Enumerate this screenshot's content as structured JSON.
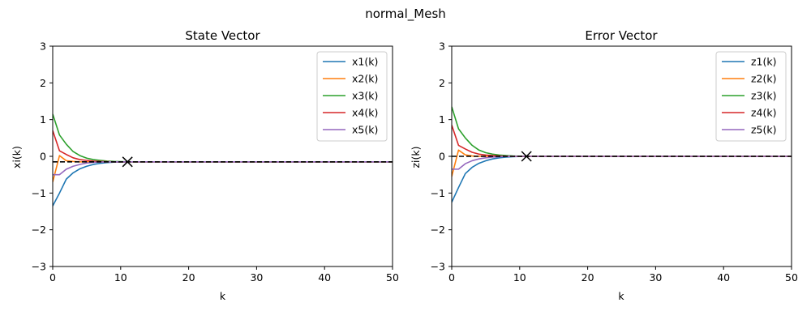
{
  "suptitle": "normal_Mesh",
  "chart_data": [
    {
      "type": "line",
      "title": "State Vector",
      "xlabel": "k",
      "ylabel": "xi(k)",
      "xlim": [
        0,
        50
      ],
      "ylim": [
        -3,
        3
      ],
      "xticks": [
        0,
        10,
        20,
        30,
        40,
        50
      ],
      "yticks": [
        -3,
        -2,
        -1,
        0,
        1,
        2,
        3
      ],
      "xtick_labels": [
        "0",
        "10",
        "20",
        "30",
        "40",
        "50"
      ],
      "ytick_labels": [
        "−3",
        "−2",
        "−1",
        "0",
        "1",
        "2",
        "3"
      ],
      "legend": "top-right",
      "grid": false,
      "reference_line": {
        "y": -0.15,
        "style": "dashed",
        "color": "#000000"
      },
      "marker": {
        "x": 11,
        "y": -0.15,
        "symbol": "x"
      },
      "x": [
        0,
        1,
        2,
        3,
        4,
        5,
        6,
        7,
        8,
        9,
        10,
        11,
        12,
        13,
        14,
        15,
        16,
        17,
        18,
        19,
        20,
        21,
        22,
        23,
        24,
        25,
        26,
        27,
        28,
        29,
        30,
        31,
        32,
        33,
        34,
        35,
        36,
        37,
        38,
        39,
        40,
        41,
        42,
        43,
        44,
        45,
        46,
        47,
        48,
        49,
        50
      ],
      "series": [
        {
          "name": "x1(k)",
          "color": "#1f77b4",
          "values": [
            -1.35,
            -1.0,
            -0.62,
            -0.45,
            -0.34,
            -0.27,
            -0.22,
            -0.19,
            -0.17,
            -0.16,
            -0.155,
            -0.15,
            -0.15,
            -0.15,
            -0.15,
            -0.15,
            -0.15,
            -0.15,
            -0.15,
            -0.15,
            -0.15,
            -0.15,
            -0.15,
            -0.15,
            -0.15,
            -0.15,
            -0.15,
            -0.15,
            -0.15,
            -0.15,
            -0.15,
            -0.15,
            -0.15,
            -0.15,
            -0.15,
            -0.15,
            -0.15,
            -0.15,
            -0.15,
            -0.15,
            -0.15,
            -0.15,
            -0.15,
            -0.15,
            -0.15,
            -0.15,
            -0.15,
            -0.15,
            -0.15,
            -0.15,
            -0.15
          ]
        },
        {
          "name": "x2(k)",
          "color": "#ff7f0e",
          "values": [
            -0.7,
            0.02,
            -0.12,
            -0.14,
            -0.15,
            -0.15,
            -0.15,
            -0.15,
            -0.15,
            -0.15,
            -0.15,
            -0.15,
            -0.15,
            -0.15,
            -0.15,
            -0.15,
            -0.15,
            -0.15,
            -0.15,
            -0.15,
            -0.15,
            -0.15,
            -0.15,
            -0.15,
            -0.15,
            -0.15,
            -0.15,
            -0.15,
            -0.15,
            -0.15,
            -0.15,
            -0.15,
            -0.15,
            -0.15,
            -0.15,
            -0.15,
            -0.15,
            -0.15,
            -0.15,
            -0.15,
            -0.15,
            -0.15,
            -0.15,
            -0.15,
            -0.15,
            -0.15,
            -0.15,
            -0.15,
            -0.15,
            -0.15,
            -0.15
          ]
        },
        {
          "name": "x3(k)",
          "color": "#2ca02c",
          "values": [
            1.15,
            0.58,
            0.33,
            0.13,
            0.02,
            -0.05,
            -0.09,
            -0.11,
            -0.13,
            -0.14,
            -0.145,
            -0.15,
            -0.15,
            -0.15,
            -0.15,
            -0.15,
            -0.15,
            -0.15,
            -0.15,
            -0.15,
            -0.15,
            -0.15,
            -0.15,
            -0.15,
            -0.15,
            -0.15,
            -0.15,
            -0.15,
            -0.15,
            -0.15,
            -0.15,
            -0.15,
            -0.15,
            -0.15,
            -0.15,
            -0.15,
            -0.15,
            -0.15,
            -0.15,
            -0.15,
            -0.15,
            -0.15,
            -0.15,
            -0.15,
            -0.15,
            -0.15,
            -0.15,
            -0.15,
            -0.15,
            -0.15,
            -0.15
          ]
        },
        {
          "name": "x4(k)",
          "color": "#d62728",
          "values": [
            0.7,
            0.15,
            0.05,
            -0.04,
            -0.09,
            -0.11,
            -0.13,
            -0.14,
            -0.145,
            -0.15,
            -0.15,
            -0.15,
            -0.15,
            -0.15,
            -0.15,
            -0.15,
            -0.15,
            -0.15,
            -0.15,
            -0.15,
            -0.15,
            -0.15,
            -0.15,
            -0.15,
            -0.15,
            -0.15,
            -0.15,
            -0.15,
            -0.15,
            -0.15,
            -0.15,
            -0.15,
            -0.15,
            -0.15,
            -0.15,
            -0.15,
            -0.15,
            -0.15,
            -0.15,
            -0.15,
            -0.15,
            -0.15,
            -0.15,
            -0.15,
            -0.15,
            -0.15,
            -0.15,
            -0.15,
            -0.15,
            -0.15,
            -0.15
          ]
        },
        {
          "name": "x5(k)",
          "color": "#9467bd",
          "values": [
            -0.5,
            -0.5,
            -0.35,
            -0.27,
            -0.22,
            -0.18,
            -0.165,
            -0.155,
            -0.15,
            -0.15,
            -0.15,
            -0.15,
            -0.15,
            -0.15,
            -0.15,
            -0.15,
            -0.15,
            -0.15,
            -0.15,
            -0.15,
            -0.15,
            -0.15,
            -0.15,
            -0.15,
            -0.15,
            -0.15,
            -0.15,
            -0.15,
            -0.15,
            -0.15,
            -0.15,
            -0.15,
            -0.15,
            -0.15,
            -0.15,
            -0.15,
            -0.15,
            -0.15,
            -0.15,
            -0.15,
            -0.15,
            -0.15,
            -0.15,
            -0.15,
            -0.15,
            -0.15,
            -0.15,
            -0.15,
            -0.15,
            -0.15,
            -0.15
          ]
        }
      ]
    },
    {
      "type": "line",
      "title": "Error Vector",
      "xlabel": "k",
      "ylabel": "zi(k)",
      "xlim": [
        0,
        50
      ],
      "ylim": [
        -3,
        3
      ],
      "xticks": [
        0,
        10,
        20,
        30,
        40,
        50
      ],
      "yticks": [
        -3,
        -2,
        -1,
        0,
        1,
        2,
        3
      ],
      "xtick_labels": [
        "0",
        "10",
        "20",
        "30",
        "40",
        "50"
      ],
      "ytick_labels": [
        "−3",
        "−2",
        "−1",
        "0",
        "1",
        "2",
        "3"
      ],
      "legend": "top-right",
      "grid": false,
      "reference_line": {
        "y": 0,
        "style": "dashed",
        "color": "#000000"
      },
      "marker": {
        "x": 11,
        "y": 0,
        "symbol": "x"
      },
      "x": [
        0,
        1,
        2,
        3,
        4,
        5,
        6,
        7,
        8,
        9,
        10,
        11,
        12,
        13,
        14,
        15,
        16,
        17,
        18,
        19,
        20,
        21,
        22,
        23,
        24,
        25,
        26,
        27,
        28,
        29,
        30,
        31,
        32,
        33,
        34,
        35,
        36,
        37,
        38,
        39,
        40,
        41,
        42,
        43,
        44,
        45,
        46,
        47,
        48,
        49,
        50
      ],
      "series": [
        {
          "name": "z1(k)",
          "color": "#1f77b4",
          "values": [
            -1.25,
            -0.85,
            -0.47,
            -0.3,
            -0.19,
            -0.12,
            -0.07,
            -0.04,
            -0.02,
            -0.01,
            -0.005,
            0,
            0,
            0,
            0,
            0,
            0,
            0,
            0,
            0,
            0,
            0,
            0,
            0,
            0,
            0,
            0,
            0,
            0,
            0,
            0,
            0,
            0,
            0,
            0,
            0,
            0,
            0,
            0,
            0,
            0,
            0,
            0,
            0,
            0,
            0,
            0,
            0,
            0,
            0,
            0
          ]
        },
        {
          "name": "z2(k)",
          "color": "#ff7f0e",
          "values": [
            -0.55,
            0.17,
            0.04,
            0.01,
            0,
            0,
            0,
            0,
            0,
            0,
            0,
            0,
            0,
            0,
            0,
            0,
            0,
            0,
            0,
            0,
            0,
            0,
            0,
            0,
            0,
            0,
            0,
            0,
            0,
            0,
            0,
            0,
            0,
            0,
            0,
            0,
            0,
            0,
            0,
            0,
            0,
            0,
            0,
            0,
            0,
            0,
            0,
            0,
            0,
            0,
            0
          ]
        },
        {
          "name": "z3(k)",
          "color": "#2ca02c",
          "values": [
            1.35,
            0.75,
            0.5,
            0.3,
            0.17,
            0.1,
            0.06,
            0.035,
            0.02,
            0.01,
            0.005,
            0,
            0,
            0,
            0,
            0,
            0,
            0,
            0,
            0,
            0,
            0,
            0,
            0,
            0,
            0,
            0,
            0,
            0,
            0,
            0,
            0,
            0,
            0,
            0,
            0,
            0,
            0,
            0,
            0,
            0,
            0,
            0,
            0,
            0,
            0,
            0,
            0,
            0,
            0,
            0
          ]
        },
        {
          "name": "z4(k)",
          "color": "#d62728",
          "values": [
            0.85,
            0.3,
            0.2,
            0.11,
            0.06,
            0.035,
            0.02,
            0.01,
            0.005,
            0,
            0,
            0,
            0,
            0,
            0,
            0,
            0,
            0,
            0,
            0,
            0,
            0,
            0,
            0,
            0,
            0,
            0,
            0,
            0,
            0,
            0,
            0,
            0,
            0,
            0,
            0,
            0,
            0,
            0,
            0,
            0,
            0,
            0,
            0,
            0,
            0,
            0,
            0,
            0,
            0,
            0
          ]
        },
        {
          "name": "z5(k)",
          "color": "#9467bd",
          "values": [
            -0.35,
            -0.35,
            -0.2,
            -0.12,
            -0.07,
            -0.04,
            -0.02,
            -0.01,
            -0.005,
            0,
            0,
            0,
            0,
            0,
            0,
            0,
            0,
            0,
            0,
            0,
            0,
            0,
            0,
            0,
            0,
            0,
            0,
            0,
            0,
            0,
            0,
            0,
            0,
            0,
            0,
            0,
            0,
            0,
            0,
            0,
            0,
            0,
            0,
            0,
            0,
            0,
            0,
            0,
            0,
            0,
            0
          ]
        }
      ]
    }
  ]
}
